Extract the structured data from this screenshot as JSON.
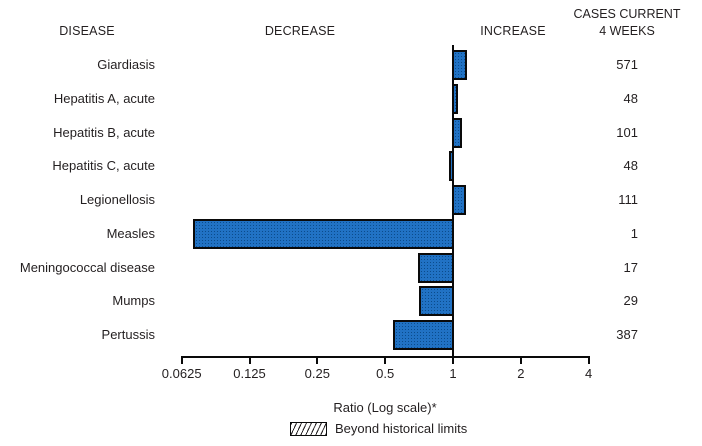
{
  "header": {
    "disease": "DISEASE",
    "decrease": "DECREASE",
    "increase": "INCREASE",
    "cases_line1": "CASES CURRENT",
    "cases_line2": "4 WEEKS"
  },
  "colors": {
    "bar_fill": "#2172c4",
    "bar_dot": "#0b4c8c",
    "bar_border": "#0a0a0a",
    "text": "#231f20"
  },
  "chart_data": {
    "type": "bar",
    "orientation": "horizontal",
    "scale": "log2",
    "xlabel": "Ratio (Log scale)*",
    "x_ticks": [
      0.0625,
      0.125,
      0.25,
      0.5,
      1,
      2,
      4
    ],
    "xlim": [
      0.0625,
      4
    ],
    "baseline": 1,
    "legend": [
      {
        "label": "Beyond historical limits",
        "style": "hatched"
      }
    ],
    "series": [
      {
        "disease": "Giardiasis",
        "ratio": 1.15,
        "cases": "571"
      },
      {
        "disease": "Hepatitis A, acute",
        "ratio": 1.05,
        "cases": "48"
      },
      {
        "disease": "Hepatitis B, acute",
        "ratio": 1.1,
        "cases": "101"
      },
      {
        "disease": "Hepatitis C, acute",
        "ratio": 0.96,
        "cases": "48"
      },
      {
        "disease": "Legionellosis",
        "ratio": 1.14,
        "cases": "111"
      },
      {
        "disease": "Measles",
        "ratio": 0.07,
        "cases": "1"
      },
      {
        "disease": "Meningococcal disease",
        "ratio": 0.7,
        "cases": "17"
      },
      {
        "disease": "Mumps",
        "ratio": 0.71,
        "cases": "29"
      },
      {
        "disease": "Pertussis",
        "ratio": 0.54,
        "cases": "387"
      }
    ]
  }
}
